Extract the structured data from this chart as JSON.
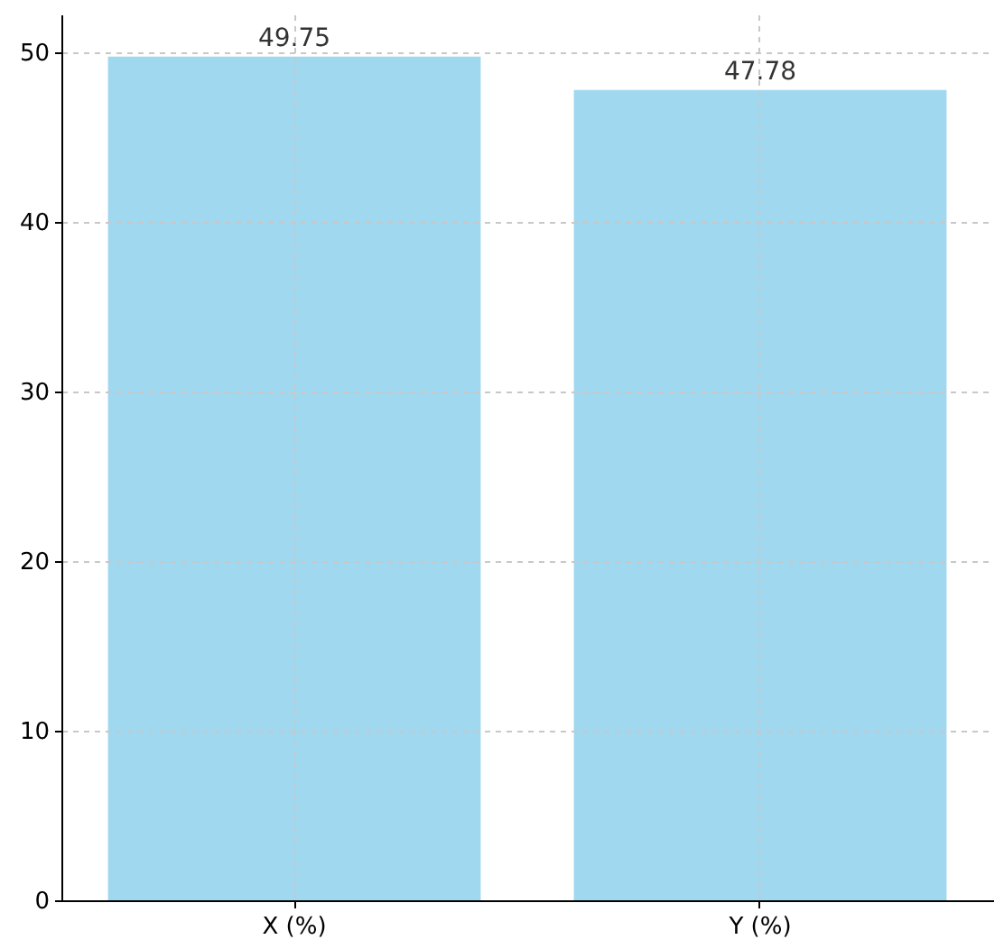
{
  "chart_data": {
    "type": "bar",
    "categories": [
      "X (%)",
      "Y (%)"
    ],
    "values": [
      49.75,
      47.78
    ],
    "color": "#9fd8ef",
    "ylim": [
      0,
      52.24
    ],
    "yticks": [
      0,
      10,
      20,
      30,
      40,
      50
    ],
    "grid": true,
    "data_labels": true
  }
}
